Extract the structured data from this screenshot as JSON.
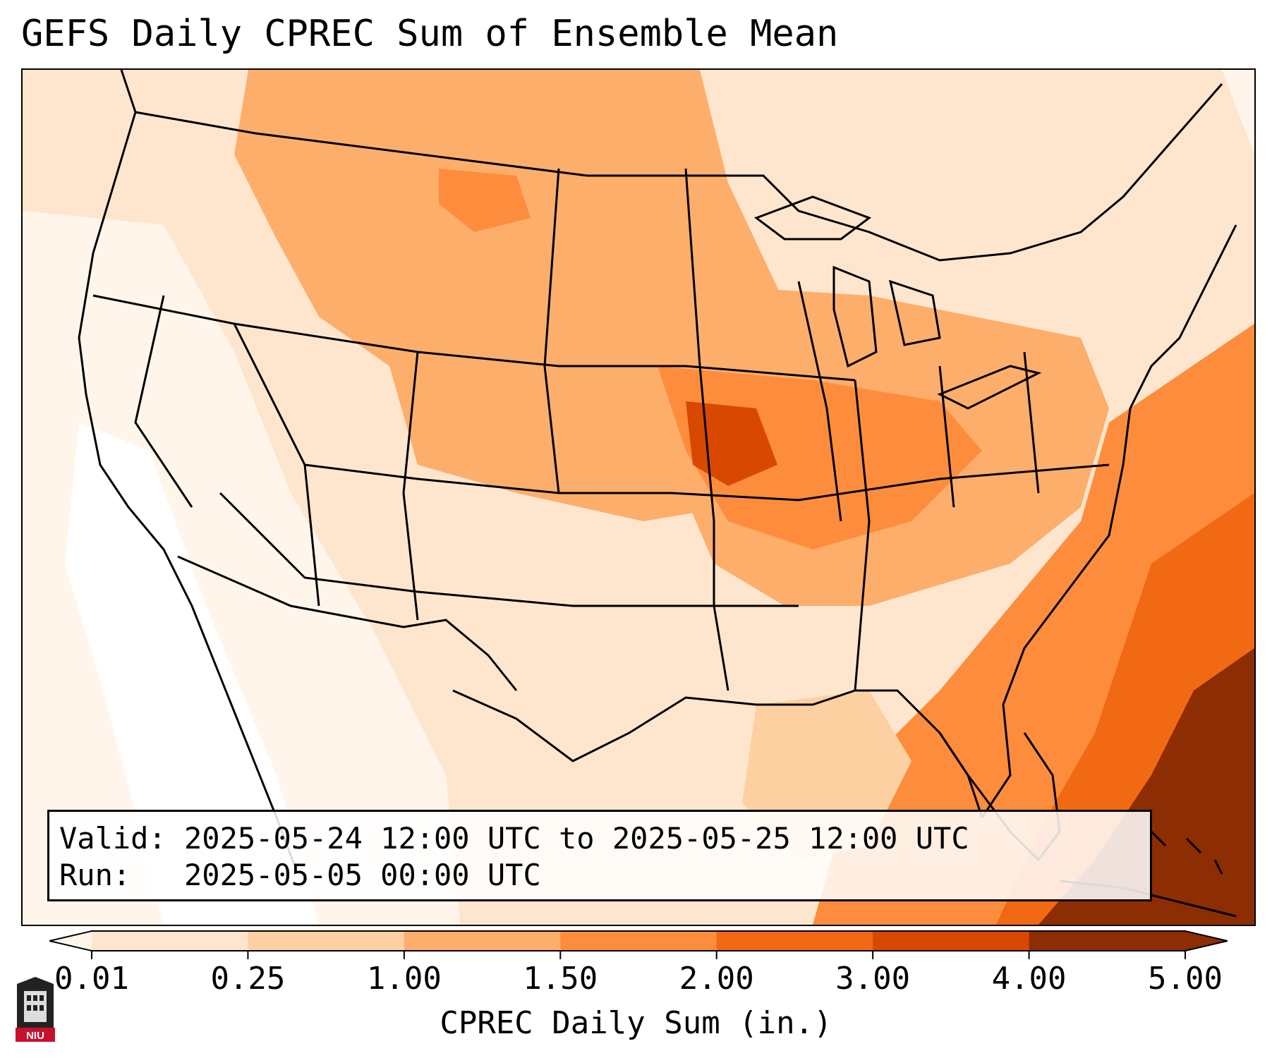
{
  "title": "GEFS Daily CPREC Sum of Ensemble Mean",
  "info": {
    "valid_label": "Valid:",
    "valid_value": "2025-05-24 12:00 UTC to 2025-05-25 12:00 UTC",
    "run_label": "Run:",
    "run_value": "2025-05-05 00:00 UTC"
  },
  "colorbar": {
    "label": "CPREC Daily Sum (in.)",
    "ticks": [
      "0.01",
      "0.25",
      "1.00",
      "1.50",
      "2.00",
      "3.00",
      "4.00",
      "5.00"
    ],
    "colors": [
      "#fff5eb",
      "#fee6ce",
      "#fdd0a2",
      "#fdae6b",
      "#fd8d3c",
      "#f16913",
      "#d94801",
      "#8c2d04"
    ],
    "extend": "both"
  },
  "logo": {
    "text": "NIU",
    "color": "#c8102e"
  },
  "colors": {
    "border": "#000000",
    "map_lines": "#000000"
  }
}
